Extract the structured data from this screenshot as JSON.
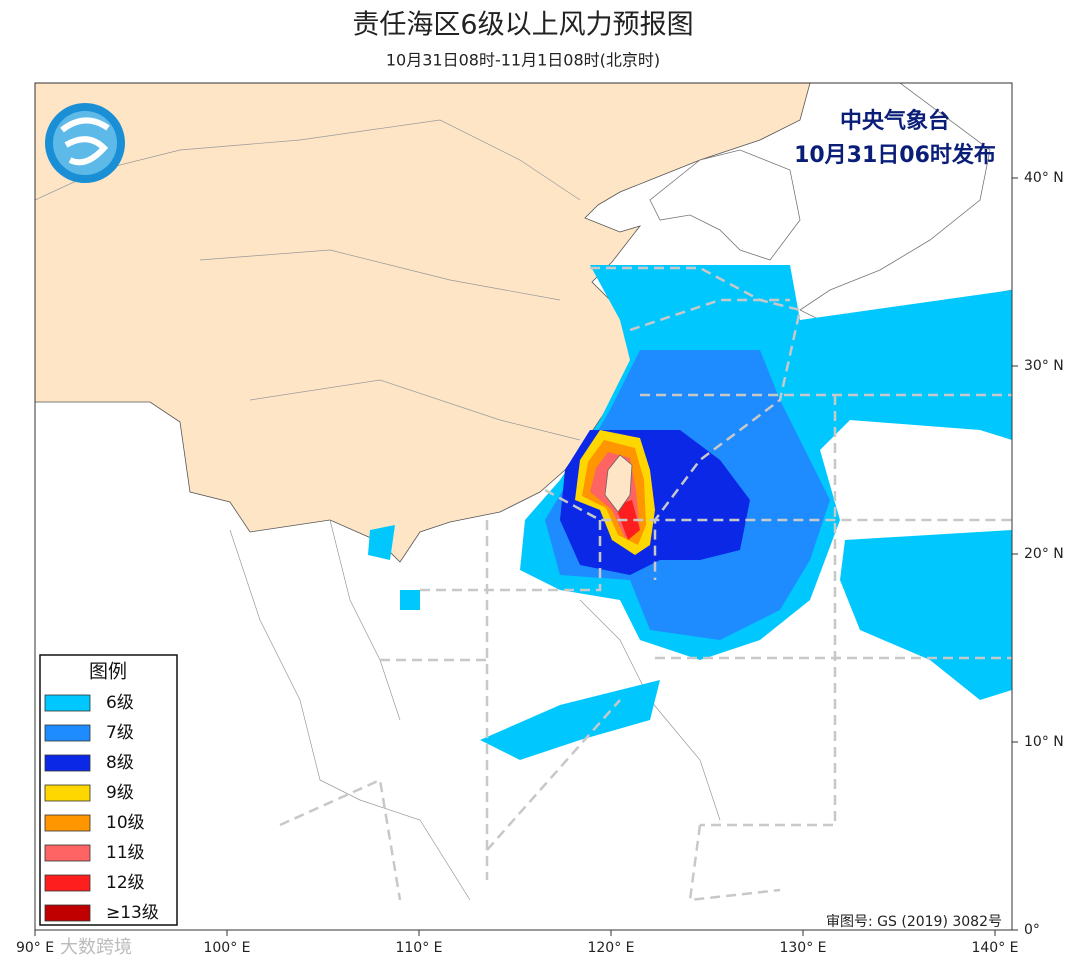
{
  "header": {
    "title": "责任海区6级以上风力预报图",
    "subtitle": "10月31日08时-11月1日08时(北京时)"
  },
  "issuer": {
    "name": "中央气象台",
    "time": "10月31日06时发布"
  },
  "legend": {
    "title": "图例",
    "items": [
      {
        "label": "6级",
        "color": "#00c8ff"
      },
      {
        "label": "7级",
        "color": "#1e8cff"
      },
      {
        "label": "8级",
        "color": "#0a28e6"
      },
      {
        "label": "9级",
        "color": "#ffd700"
      },
      {
        "label": "10级",
        "color": "#ff9600"
      },
      {
        "label": "11级",
        "color": "#ff6464"
      },
      {
        "label": "12级",
        "color": "#ff1e1e"
      },
      {
        "label": "≥13级",
        "color": "#c00000"
      }
    ]
  },
  "axes": {
    "lat_labels": [
      "40° N",
      "30° N",
      "20° N",
      "10° N",
      "0°"
    ],
    "lon_labels": [
      "90° E",
      "100° E",
      "110° E",
      "120° E",
      "130° E",
      "140° E"
    ]
  },
  "footer": {
    "review_number": "审图号: GS (2019) 3082号",
    "watermark": "大数跨境"
  }
}
